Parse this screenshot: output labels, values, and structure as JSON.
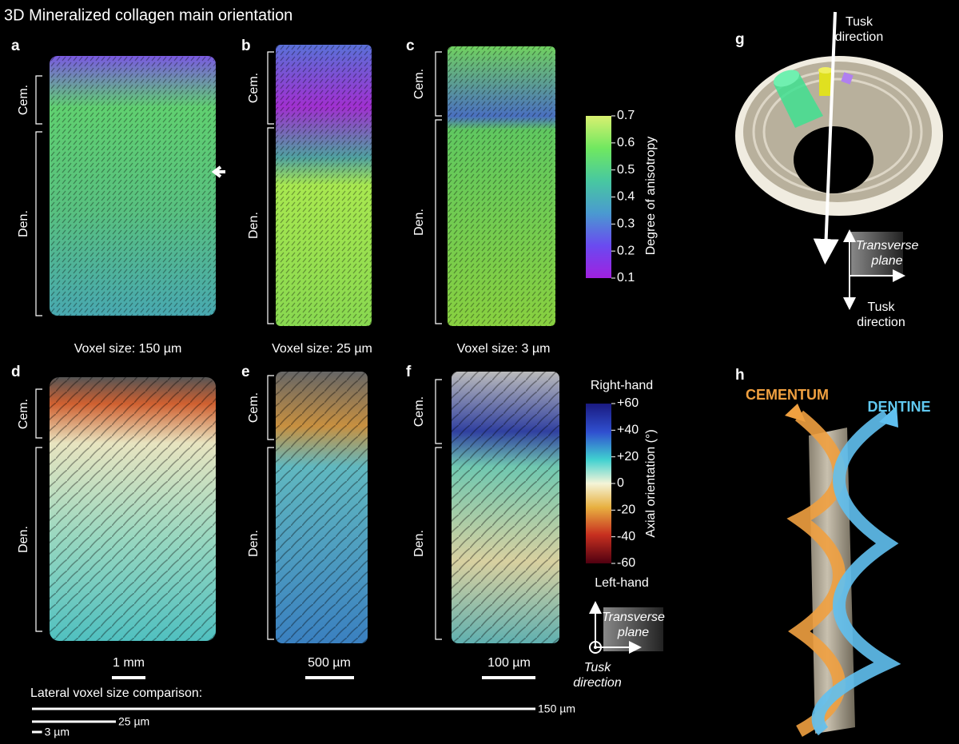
{
  "title": "3D Mineralized collagen main orientation",
  "panel_labels": [
    "a",
    "b",
    "c",
    "d",
    "e",
    "f",
    "g",
    "h"
  ],
  "regions": {
    "cementum": "Cem.",
    "dentine": "Den."
  },
  "voxel_sizes": [
    "Voxel size: 150 µm",
    "Voxel size: 25 µm",
    "Voxel size: 3 µm"
  ],
  "anisotropy_colorbar": {
    "title": "Degree of anisotropy",
    "lim": [
      0.1,
      0.7
    ],
    "ticks": [
      0.7,
      0.6,
      0.5,
      0.4,
      0.3,
      0.2,
      0.1
    ]
  },
  "orientation_colorbar": {
    "title": "Axial orientation (°)",
    "top_label": "Right-hand",
    "bottom_label": "Left-hand",
    "lim": [
      -60,
      60
    ],
    "ticks": [
      {
        "value": 60,
        "label": "+60"
      },
      {
        "value": 40,
        "label": "+40"
      },
      {
        "value": 20,
        "label": "+20"
      },
      0,
      -20,
      -40,
      -60
    ]
  },
  "scale_bars": [
    "1 mm",
    "500 µm",
    "100 µm"
  ],
  "voxel_comparison": {
    "title": "Lateral voxel size comparison:",
    "bars": [
      {
        "value": 150,
        "label": "150 µm"
      },
      {
        "value": 25,
        "label": "25 µm"
      },
      {
        "value": 3,
        "label": "3 µm"
      }
    ]
  },
  "axes_diagram": {
    "transverse": "Transverse plane",
    "tusk": "Tusk direction"
  },
  "panel_g": {
    "top_label": "Tusk direction"
  },
  "panel_h": {
    "cementum": "CEMENTUM",
    "dentine": "DENTINE"
  }
}
